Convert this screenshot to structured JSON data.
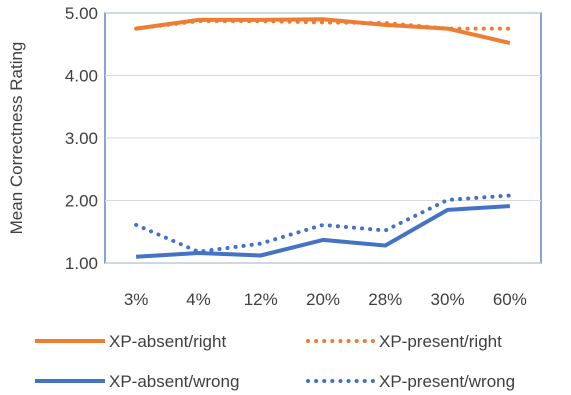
{
  "chart_data": {
    "type": "line",
    "title": "",
    "xlabel": "",
    "ylabel": "Mean Correctness Rating",
    "categories": [
      "3%",
      "4%",
      "12%",
      "20%",
      "28%",
      "30%",
      "60%"
    ],
    "ylim": [
      1.0,
      5.0
    ],
    "yticks": [
      "1.00",
      "2.00",
      "3.00",
      "4.00",
      "5.00"
    ],
    "grid": "horizontal",
    "legend_position": "bottom",
    "series": [
      {
        "name": "XP-absent/right",
        "color": "#ED7D31",
        "style": "solid",
        "values": [
          4.75,
          4.89,
          4.89,
          4.9,
          4.81,
          4.75,
          4.52
        ]
      },
      {
        "name": "XP-present/right",
        "color": "#ED7D31",
        "style": "dotted",
        "values": [
          4.75,
          4.87,
          4.87,
          4.85,
          4.84,
          4.75,
          4.75
        ]
      },
      {
        "name": "XP-absent/wrong",
        "color": "#4472C4",
        "style": "solid",
        "values": [
          1.1,
          1.16,
          1.12,
          1.37,
          1.28,
          1.85,
          1.91
        ]
      },
      {
        "name": "XP-present/wrong",
        "color": "#4472C4",
        "style": "dotted",
        "values": [
          1.61,
          1.18,
          1.31,
          1.61,
          1.52,
          2.01,
          2.08
        ]
      }
    ]
  }
}
